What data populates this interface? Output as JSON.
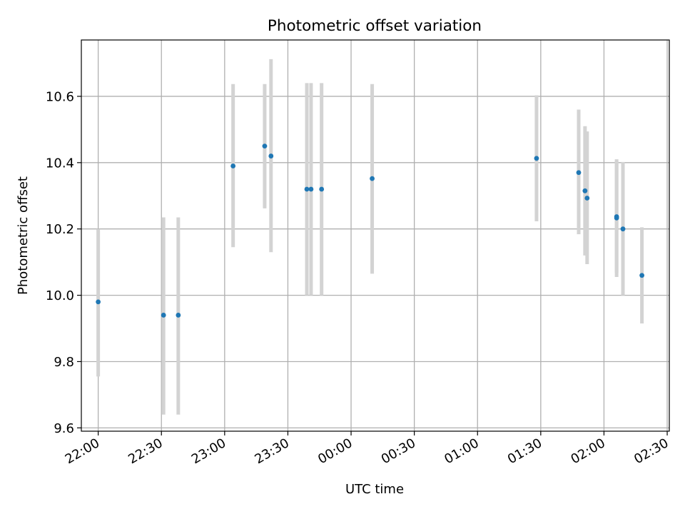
{
  "chart_data": {
    "type": "scatter",
    "title": "Photometric offset variation",
    "xlabel": "UTC time",
    "ylabel": "Photometric offset",
    "x_axis": {
      "format": "HH:MM",
      "range": [
        "21:52",
        "02:31"
      ],
      "ticks": [
        "22:00",
        "22:30",
        "23:00",
        "23:30",
        "00:00",
        "00:30",
        "01:00",
        "01:30",
        "02:00",
        "02:30"
      ]
    },
    "y_axis": {
      "range": [
        9.59,
        10.77
      ],
      "ticks": [
        "9.6",
        "9.8",
        "10.0",
        "10.2",
        "10.4",
        "10.6"
      ]
    },
    "grid": true,
    "colors": {
      "point": "#1f77b4",
      "errorbar": "#d3d3d3",
      "grid": "#b0b0b0"
    },
    "points": [
      {
        "x": "22:00",
        "y": 9.98,
        "ylow": 9.755,
        "yhigh": 10.2
      },
      {
        "x": "22:31",
        "y": 9.94,
        "ylow": 9.64,
        "yhigh": 10.235
      },
      {
        "x": "22:38",
        "y": 9.94,
        "ylow": 9.64,
        "yhigh": 10.235
      },
      {
        "x": "23:04",
        "y": 10.39,
        "ylow": 10.145,
        "yhigh": 10.637
      },
      {
        "x": "23:19",
        "y": 10.45,
        "ylow": 10.262,
        "yhigh": 10.637
      },
      {
        "x": "23:22",
        "y": 10.42,
        "ylow": 10.13,
        "yhigh": 10.712
      },
      {
        "x": "23:39",
        "y": 10.32,
        "ylow": 10.0,
        "yhigh": 10.64
      },
      {
        "x": "23:41",
        "y": 10.32,
        "ylow": 10.0,
        "yhigh": 10.64
      },
      {
        "x": "23:46",
        "y": 10.32,
        "ylow": 10.0,
        "yhigh": 10.64
      },
      {
        "x": "00:10",
        "y": 10.352,
        "ylow": 10.065,
        "yhigh": 10.637
      },
      {
        "x": "01:28",
        "y": 10.413,
        "ylow": 10.223,
        "yhigh": 10.603
      },
      {
        "x": "01:48",
        "y": 10.37,
        "ylow": 10.184,
        "yhigh": 10.56
      },
      {
        "x": "01:51",
        "y": 10.315,
        "ylow": 10.12,
        "yhigh": 10.51
      },
      {
        "x": "01:52",
        "y": 10.293,
        "ylow": 10.094,
        "yhigh": 10.494
      },
      {
        "x": "02:06",
        "y": 10.237,
        "ylow": 10.067,
        "yhigh": 10.41
      },
      {
        "x": "02:06",
        "y": 10.233,
        "ylow": 10.055,
        "yhigh": 10.405
      },
      {
        "x": "02:09",
        "y": 10.2,
        "ylow": 10.0,
        "yhigh": 10.402
      },
      {
        "x": "02:18",
        "y": 10.06,
        "ylow": 9.915,
        "yhigh": 10.205
      }
    ]
  }
}
